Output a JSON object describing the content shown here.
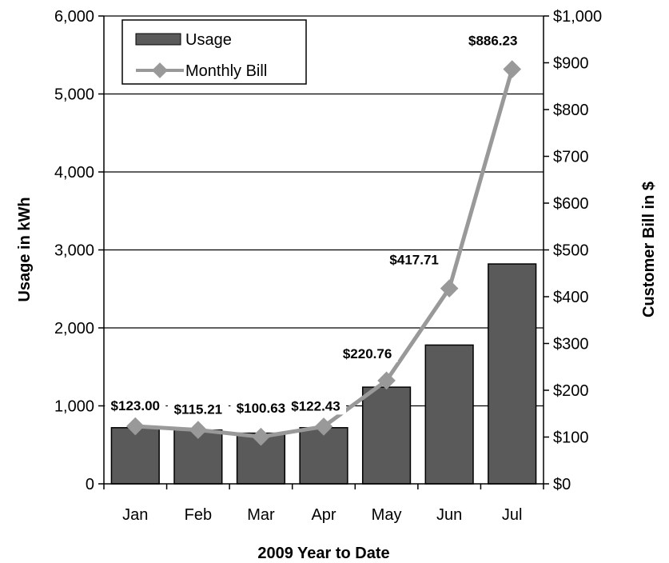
{
  "chart_data": {
    "type": "bar",
    "xlabel": "2009 Year to Date",
    "ylabel": "Usage in kWh",
    "y2label": "Customer Bill in $",
    "categories": [
      "Jan",
      "Feb",
      "Mar",
      "Apr",
      "May",
      "Jun",
      "Jul"
    ],
    "ylim": [
      0,
      6000
    ],
    "y2lim": [
      0,
      1000
    ],
    "y_ticks": [
      "0",
      "1,000",
      "2,000",
      "3,000",
      "4,000",
      "5,000",
      "6,000"
    ],
    "y2_ticks": [
      "$0",
      "$100",
      "$200",
      "$300",
      "$400",
      "$500",
      "$600",
      "$700",
      "$800",
      "$900",
      "$1,000"
    ],
    "grid": true,
    "legend_position": "top-left",
    "series": [
      {
        "name": "Usage",
        "type": "bar",
        "axis": "left",
        "color": "#5a5a5a",
        "values": [
          720,
          690,
          650,
          720,
          1240,
          1780,
          2820
        ]
      },
      {
        "name": "Monthly Bill",
        "type": "line",
        "axis": "right",
        "color": "#999999",
        "values": [
          123.0,
          115.21,
          100.63,
          122.43,
          220.76,
          417.71,
          886.23
        ],
        "labels": [
          "$123.00",
          "$115.21",
          "$100.63",
          "$122.43",
          "$220.76",
          "$417.71",
          "$886.23"
        ]
      }
    ]
  }
}
